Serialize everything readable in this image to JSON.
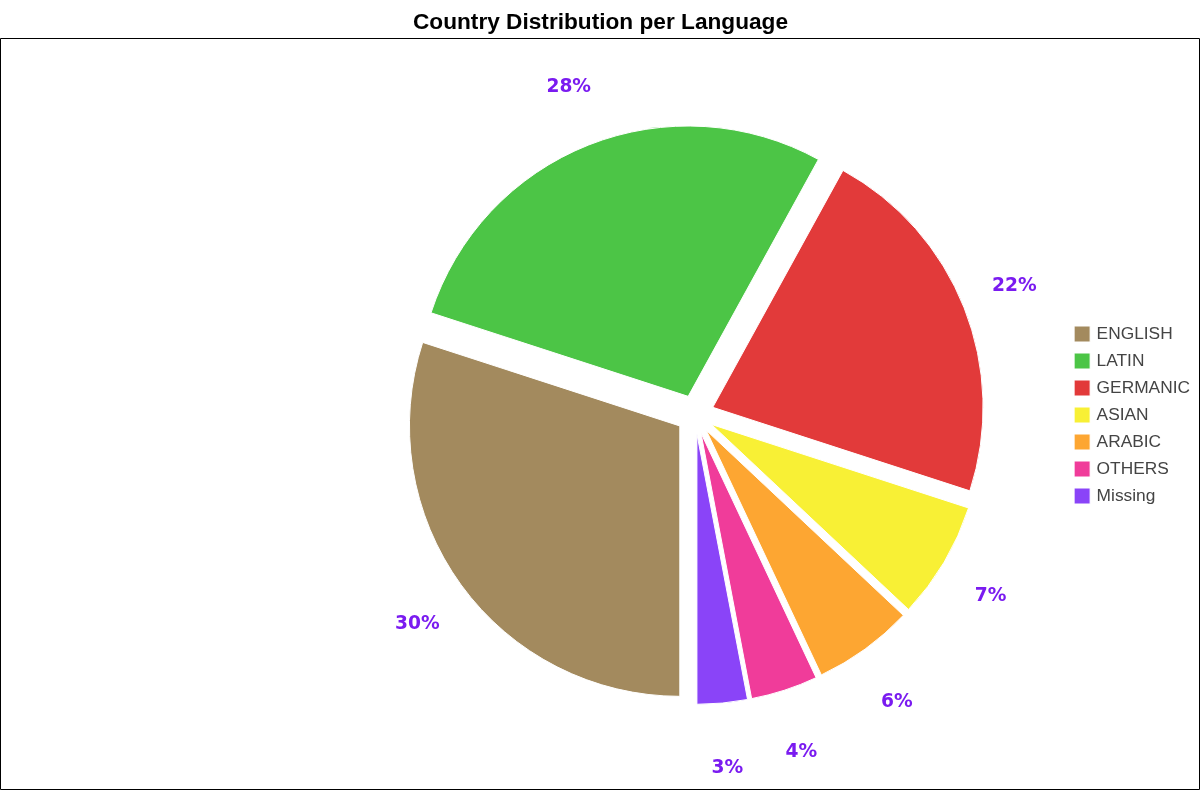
{
  "chart_data": {
    "type": "pie",
    "title": "Country Distribution per Language",
    "categories": [
      "ENGLISH",
      "LATIN",
      "GERMANIC",
      "ASIAN",
      "ARABIC",
      "OTHERS",
      "Missing"
    ],
    "values": [
      30,
      28,
      22,
      7,
      6,
      4,
      3
    ],
    "colors": [
      "#a38a5e",
      "#4cc546",
      "#e23a3a",
      "#f8f035",
      "#fda632",
      "#f03c9a",
      "#8a44f8"
    ],
    "value_labels": [
      "30%",
      "28%",
      "22%",
      "7%",
      "6%",
      "4%",
      "3%"
    ],
    "legend": "right"
  }
}
